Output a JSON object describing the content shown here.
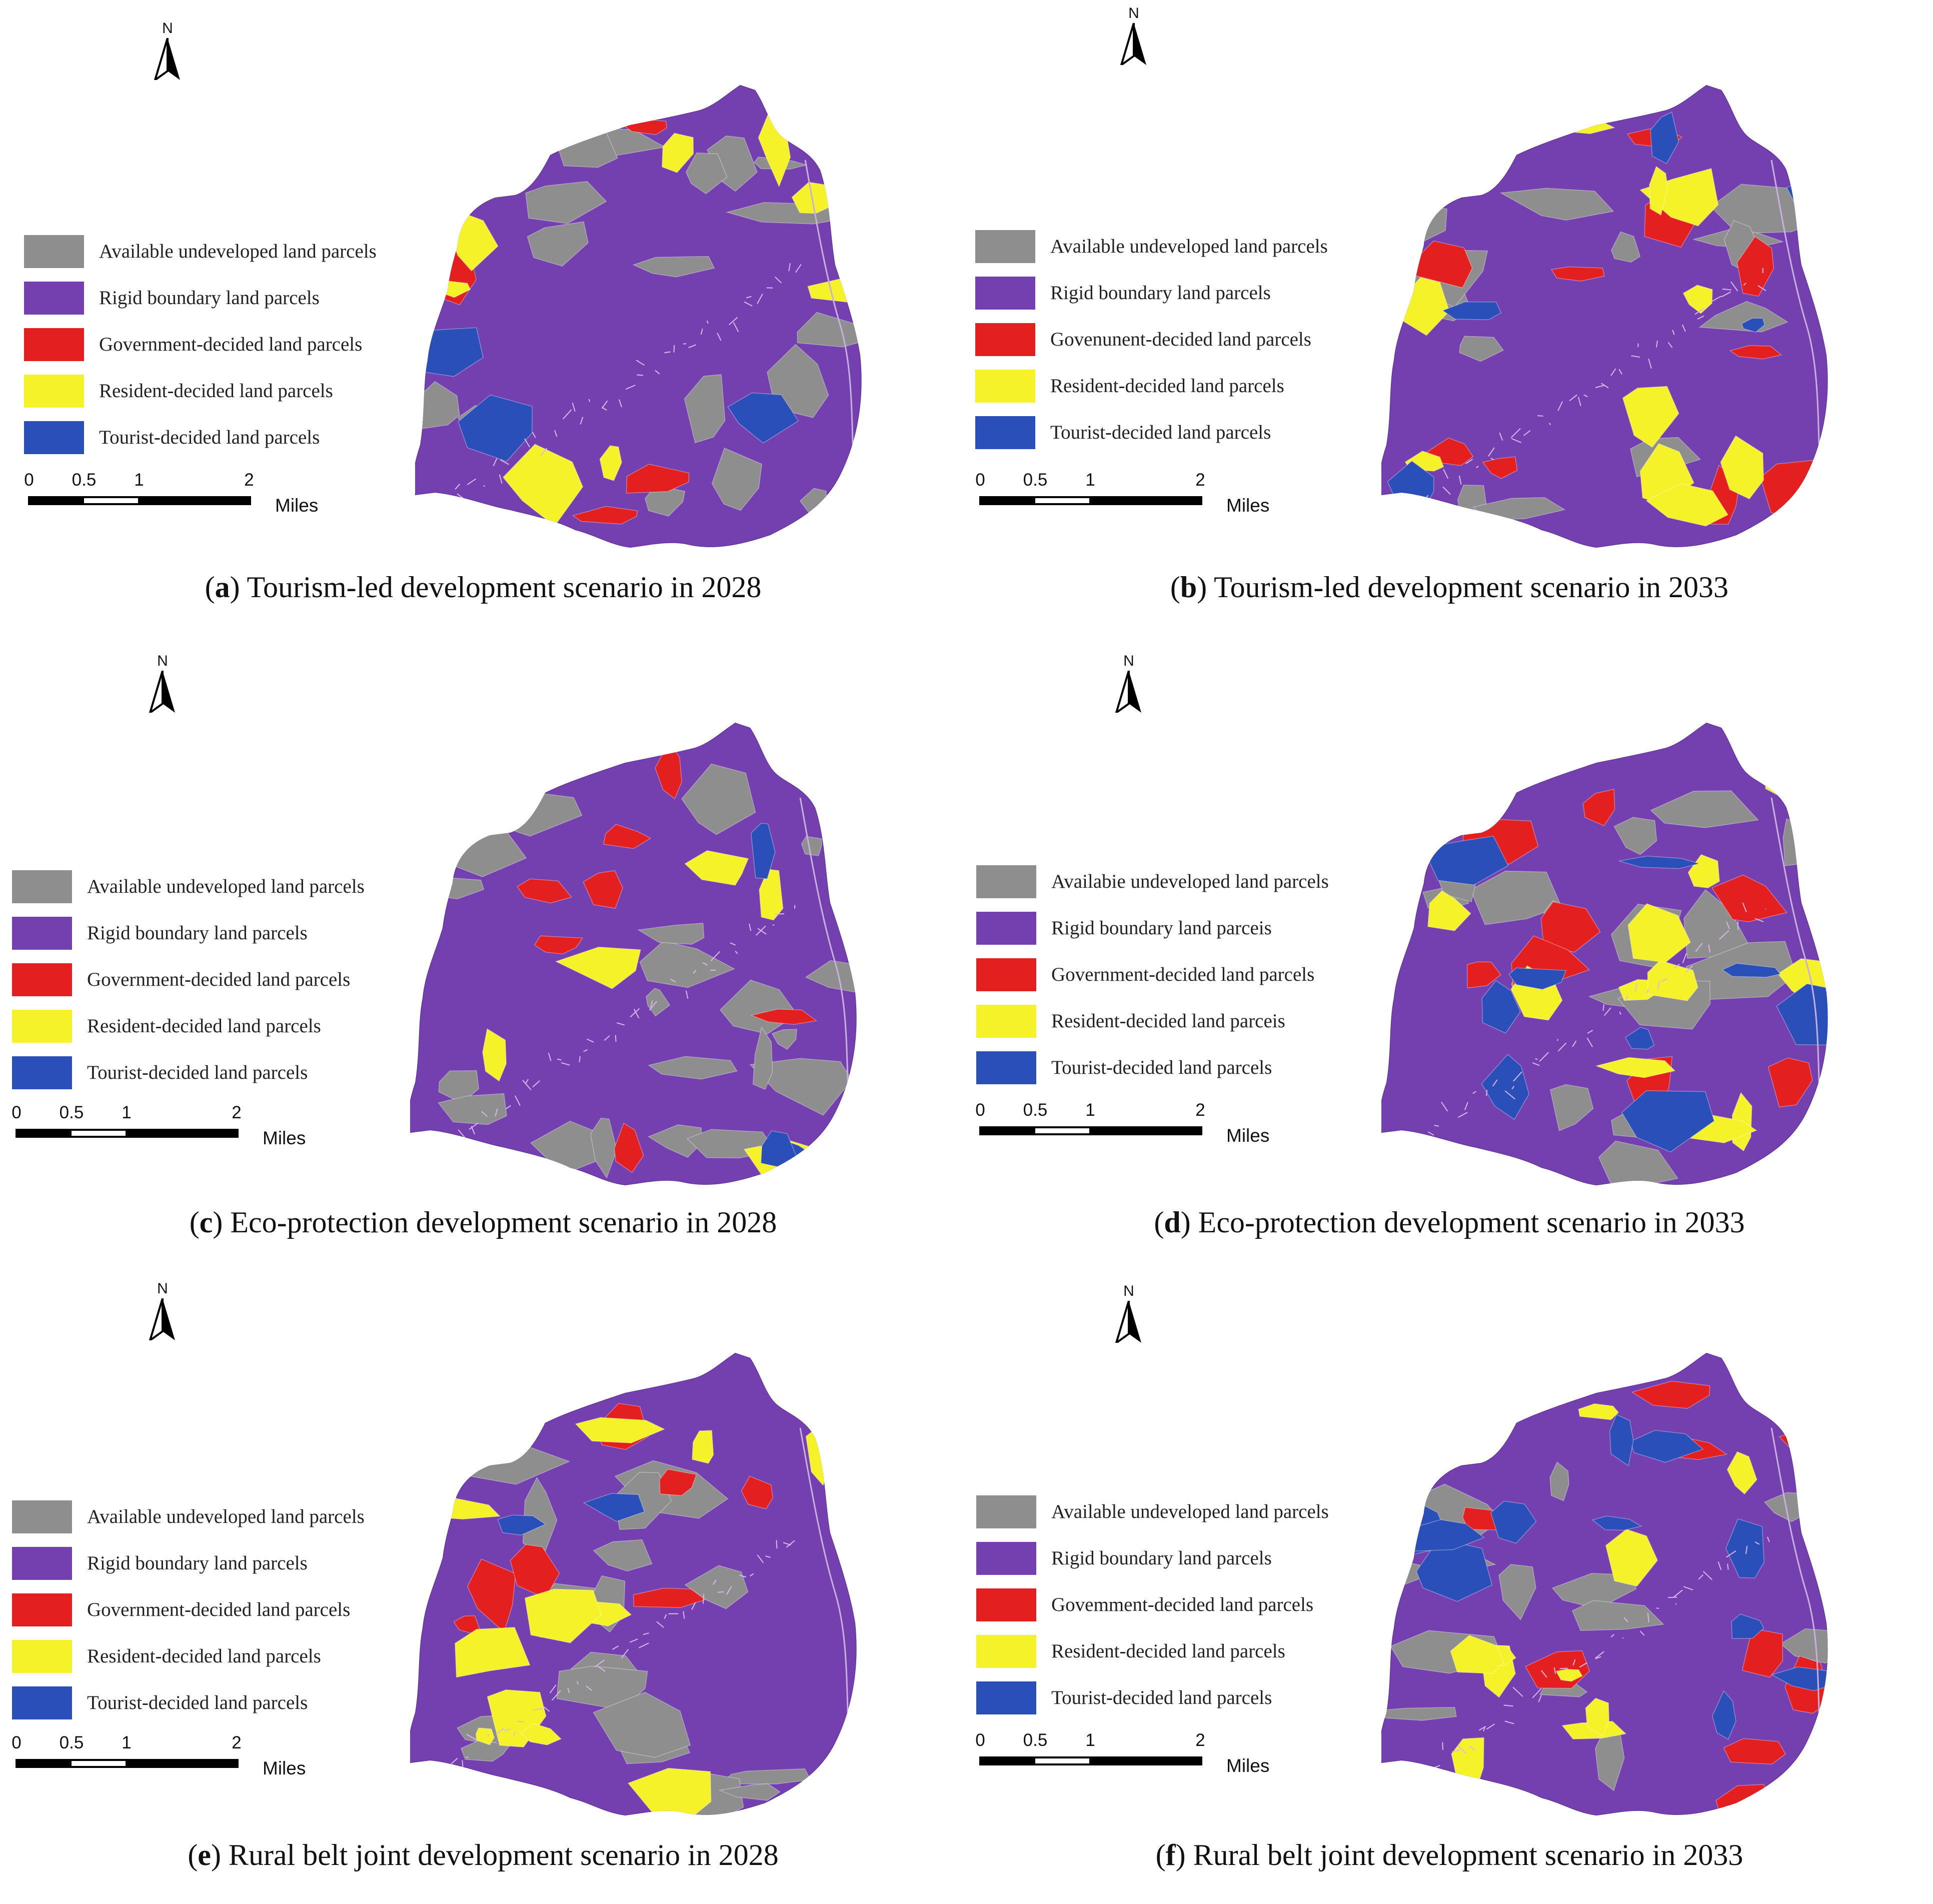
{
  "north_label": "N",
  "scale": {
    "ticks": [
      "0",
      "0.5",
      "1",
      "2"
    ],
    "unit": "Miles"
  },
  "colors": {
    "available": "#8e8e8e",
    "rigid": "#7440b0",
    "government": "#e3201f",
    "resident": "#f6f22a",
    "tourist": "#2a4fb8",
    "roads": "#d9b9e8"
  },
  "panels": [
    {
      "letter": "a",
      "caption": " Tourism-led development scenario in 2028",
      "legend": [
        "Available undeveloped land parcels",
        "Rigid boundary land parcels",
        "Government-decided land parcels",
        "Resident-decided land parcels",
        "Tourist-decided land parcels"
      ]
    },
    {
      "letter": "b",
      "caption": " Tourism-led development scenario in 2033",
      "legend": [
        "Available undeveloped land parcels",
        "Rigid boundary land parcels",
        "Govenunent-decided land parcels",
        "Resident-decided land parcels",
        "Tourist-decided land parcels"
      ]
    },
    {
      "letter": "c",
      "caption": " Eco-protection development scenario in 2028",
      "legend": [
        "Available undeveloped land parcels",
        "Rigid boundary land parcels",
        "Government-decided land parcels",
        "Resident-decided land parcels",
        "Tourist-decided land parcels"
      ]
    },
    {
      "letter": "d",
      "caption": " Eco-protection development scenario in 2033",
      "legend": [
        "Availabie undeveloped land parcels",
        "Rigid boundary land parceis",
        "Government-decided land parcels",
        "Resident-decided land parceis",
        "Tourist-decided land parcels"
      ]
    },
    {
      "letter": "e",
      "caption": " Rural belt joint development scenario in 2028",
      "legend": [
        "Available undeveloped land parcels",
        "Rigid boundary land parcels",
        "Government-decided land parcels",
        "Resident-decided land parcels",
        "Tourist-decided land parcels"
      ]
    },
    {
      "letter": "f",
      "caption": " Rural belt joint development scenario in 2033",
      "legend": [
        "Available undeveloped land parcels",
        "Rigid boundary land parcels",
        "Govemment-decided land parcels",
        "Resident-decided land parcels",
        "Tourist-decided land parcels"
      ]
    }
  ]
}
